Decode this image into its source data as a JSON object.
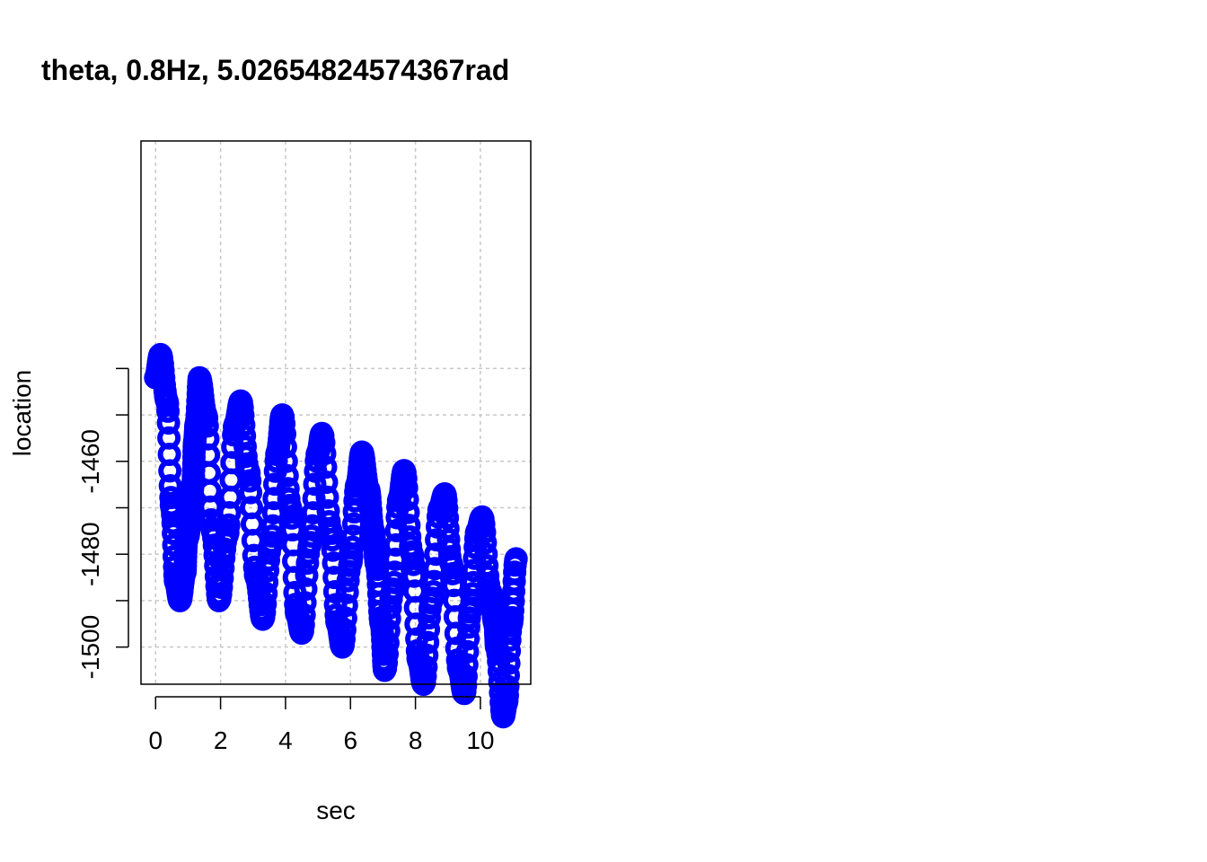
{
  "chart_data": {
    "type": "scatter",
    "title": "theta, 0.8Hz, 5.02654824574367rad",
    "xlabel": "sec",
    "ylabel": "location",
    "xlim": [
      -0.45,
      11.55
    ],
    "ylim": [
      -1508,
      -1391
    ],
    "xticks": [
      0,
      2,
      4,
      6,
      8,
      10
    ],
    "xtick_labels": [
      "0",
      "2",
      "4",
      "6",
      "8",
      "10"
    ],
    "yticks": [
      -1500,
      -1480,
      -1460
    ],
    "ytick_labels": [
      "-1500",
      "-1480",
      "-1460"
    ],
    "ygrid_lines": [
      -1500,
      -1490,
      -1480,
      -1470,
      -1460,
      -1450,
      -1440
    ],
    "grid": true,
    "marker": "open-circle",
    "series": [
      {
        "color": "#0000ff",
        "points": [
          [
            0.0,
            -1442
          ],
          [
            0.15,
            -1437
          ],
          [
            0.35,
            -1447
          ],
          [
            0.5,
            -1470
          ],
          [
            0.62,
            -1486
          ],
          [
            0.75,
            -1490
          ],
          [
            0.9,
            -1484
          ],
          [
            0.95,
            -1477
          ],
          [
            1.0,
            -1476
          ],
          [
            1.05,
            -1472
          ],
          [
            1.1,
            -1470
          ],
          [
            1.15,
            -1465
          ],
          [
            1.2,
            -1456
          ],
          [
            1.25,
            -1452
          ],
          [
            1.35,
            -1442
          ],
          [
            1.55,
            -1450
          ],
          [
            1.75,
            -1475
          ],
          [
            1.95,
            -1490
          ],
          [
            2.2,
            -1476
          ],
          [
            2.45,
            -1452
          ],
          [
            2.62,
            -1447
          ],
          [
            2.85,
            -1462
          ],
          [
            3.1,
            -1485
          ],
          [
            3.3,
            -1494
          ],
          [
            3.55,
            -1478
          ],
          [
            3.75,
            -1458
          ],
          [
            3.9,
            -1450
          ],
          [
            4.15,
            -1470
          ],
          [
            4.35,
            -1493
          ],
          [
            4.5,
            -1497
          ],
          [
            4.75,
            -1478
          ],
          [
            5.0,
            -1458
          ],
          [
            5.12,
            -1454
          ],
          [
            5.4,
            -1475
          ],
          [
            5.6,
            -1495
          ],
          [
            5.75,
            -1500
          ],
          [
            6.0,
            -1482
          ],
          [
            6.2,
            -1465
          ],
          [
            6.35,
            -1458
          ],
          [
            6.55,
            -1466
          ],
          [
            6.7,
            -1475
          ],
          [
            6.8,
            -1482
          ],
          [
            6.95,
            -1495
          ],
          [
            7.05,
            -1505
          ],
          [
            7.3,
            -1488
          ],
          [
            7.5,
            -1468
          ],
          [
            7.65,
            -1462
          ],
          [
            7.9,
            -1480
          ],
          [
            8.1,
            -1503
          ],
          [
            8.25,
            -1508
          ],
          [
            8.5,
            -1490
          ],
          [
            8.75,
            -1470
          ],
          [
            8.9,
            -1467
          ],
          [
            9.1,
            -1482
          ],
          [
            9.35,
            -1505
          ],
          [
            9.5,
            -1510
          ],
          [
            9.7,
            -1492
          ],
          [
            9.9,
            -1475
          ],
          [
            10.05,
            -1472
          ],
          [
            10.3,
            -1488
          ],
          [
            10.45,
            -1495
          ],
          [
            10.5,
            -1500
          ],
          [
            10.7,
            -1515
          ],
          [
            10.8,
            -1512
          ],
          [
            10.95,
            -1495
          ],
          [
            11.1,
            -1481
          ]
        ]
      }
    ]
  }
}
